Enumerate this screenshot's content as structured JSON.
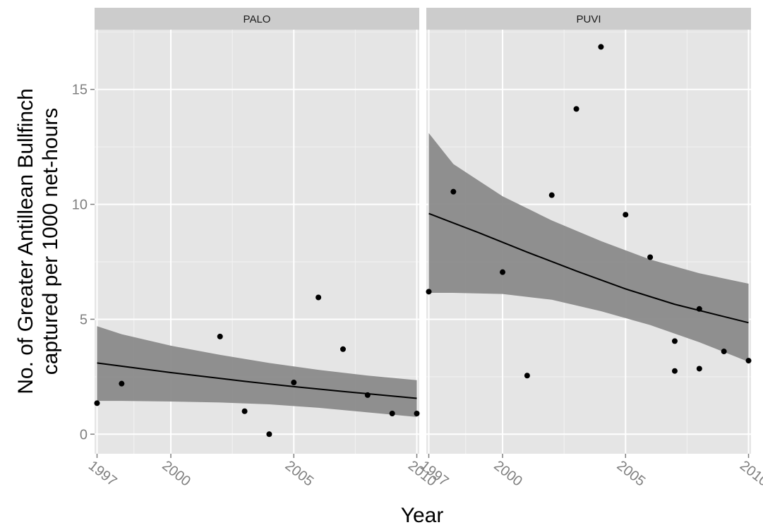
{
  "chart_data": {
    "type": "scatter",
    "xlabel": "Year",
    "ylabel_lines": [
      "No. of Greater Antillean Bullfinch",
      "captured per 1000 net-hours"
    ],
    "xlim": [
      1996.9,
      2010.1
    ],
    "ylim": [
      -0.85,
      17.6
    ],
    "xticks": [
      1997,
      2000,
      2005,
      2010
    ],
    "yticks": [
      0,
      5,
      10,
      15
    ],
    "grid": true,
    "facets": [
      {
        "name": "PALO",
        "points": [
          {
            "x": 1997,
            "y": 1.35
          },
          {
            "x": 1998,
            "y": 2.2
          },
          {
            "x": 2002,
            "y": 4.25
          },
          {
            "x": 2003,
            "y": 1.0
          },
          {
            "x": 2004,
            "y": 0.0
          },
          {
            "x": 2005,
            "y": 2.25
          },
          {
            "x": 2006,
            "y": 5.95
          },
          {
            "x": 2007,
            "y": 3.7
          },
          {
            "x": 2008,
            "y": 1.7
          },
          {
            "x": 2009,
            "y": 0.9
          },
          {
            "x": 2010,
            "y": 0.9
          }
        ],
        "fit": {
          "x": [
            1997,
            2000,
            2003,
            2005,
            2007,
            2010
          ],
          "y": [
            3.1,
            2.68,
            2.3,
            2.07,
            1.86,
            1.56
          ]
        },
        "band": {
          "x": [
            1997,
            1998,
            2000,
            2002,
            2004,
            2006,
            2008,
            2010
          ],
          "upper": [
            4.7,
            4.35,
            3.85,
            3.45,
            3.1,
            2.8,
            2.55,
            2.35
          ],
          "lower": [
            1.45,
            1.45,
            1.42,
            1.38,
            1.3,
            1.15,
            0.95,
            0.75
          ]
        }
      },
      {
        "name": "PUVI",
        "points": [
          {
            "x": 1997,
            "y": 6.2
          },
          {
            "x": 1998,
            "y": 10.55
          },
          {
            "x": 2000,
            "y": 7.05
          },
          {
            "x": 2001,
            "y": 2.55
          },
          {
            "x": 2002,
            "y": 10.4
          },
          {
            "x": 2003,
            "y": 14.15
          },
          {
            "x": 2004,
            "y": 16.85
          },
          {
            "x": 2005,
            "y": 9.55
          },
          {
            "x": 2006,
            "y": 7.7
          },
          {
            "x": 2007,
            "y": 4.05
          },
          {
            "x": 2007,
            "y": 2.75
          },
          {
            "x": 2008,
            "y": 5.45
          },
          {
            "x": 2008,
            "y": 2.85
          },
          {
            "x": 2009,
            "y": 3.6
          },
          {
            "x": 2010,
            "y": 3.2
          }
        ],
        "fit": {
          "x": [
            1997,
            1999,
            2001,
            2003,
            2005,
            2007,
            2010
          ],
          "y": [
            9.6,
            8.78,
            7.92,
            7.1,
            6.32,
            5.65,
            4.85
          ]
        },
        "band": {
          "x": [
            1997,
            1998,
            2000,
            2002,
            2004,
            2006,
            2008,
            2010
          ],
          "upper": [
            13.1,
            11.75,
            10.35,
            9.3,
            8.4,
            7.6,
            7.0,
            6.55
          ],
          "lower": [
            6.15,
            6.15,
            6.1,
            5.85,
            5.35,
            4.75,
            4.0,
            3.15
          ]
        }
      }
    ],
    "colors": {
      "panel_bg": "#e5e5e5",
      "grid_major": "#ffffff",
      "grid_minor": "#f2f2f2",
      "strip_bg": "#cccccc",
      "band": "#8a8a8a",
      "line": "#000000",
      "point": "#000000"
    }
  }
}
